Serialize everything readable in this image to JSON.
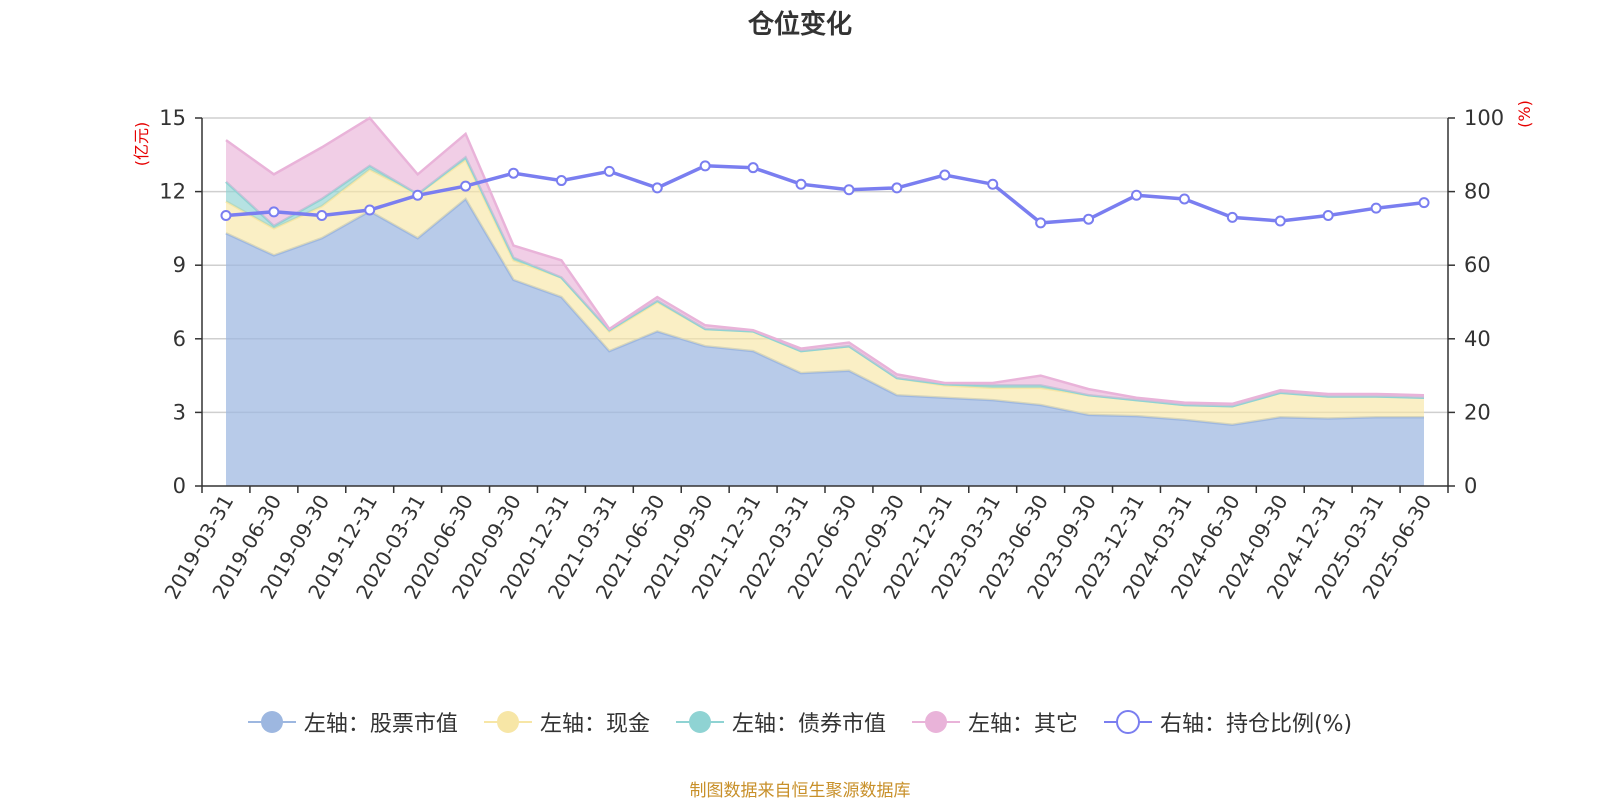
{
  "title": "仓位变化",
  "source_note": "制图数据来自恒生聚源数据库",
  "legend": [
    {
      "label": "左轴：股票市值",
      "color": "#9db7e0",
      "marker": "filled-circle"
    },
    {
      "label": "左轴：现金",
      "color": "#f7e6a6",
      "marker": "filled-circle"
    },
    {
      "label": "左轴：债券市值",
      "color": "#8fd3d3",
      "marker": "filled-circle"
    },
    {
      "label": "左轴：其它",
      "color": "#e9b3d9",
      "marker": "filled-circle"
    },
    {
      "label": "右轴：持仓比例(%)",
      "color": "#7a7ef0",
      "marker": "hollow-circle"
    }
  ],
  "chart_data": {
    "type": "area",
    "title": "仓位变化",
    "y_left_unit": "(亿元)",
    "y_right_unit": "(%)",
    "ylim_left": [
      0,
      15
    ],
    "ylim_right": [
      0,
      100
    ],
    "y_left_ticks": [
      "0",
      "3",
      "6",
      "9",
      "12",
      "15"
    ],
    "y_right_ticks": [
      "0",
      "20",
      "40",
      "60",
      "80",
      "100"
    ],
    "grid": true,
    "legend_position": "bottom",
    "categories": [
      "2019-03-31",
      "2019-06-30",
      "2019-09-30",
      "2019-12-31",
      "2020-03-31",
      "2020-06-30",
      "2020-09-30",
      "2020-12-31",
      "2021-03-31",
      "2021-06-30",
      "2021-09-30",
      "2021-12-31",
      "2022-03-31",
      "2022-06-30",
      "2022-09-30",
      "2022-12-31",
      "2023-03-31",
      "2023-06-30",
      "2023-09-30",
      "2023-12-31",
      "2024-03-31",
      "2024-06-30",
      "2024-09-30",
      "2024-12-31",
      "2025-03-31",
      "2025-06-30"
    ],
    "series": [
      {
        "name": "左轴：股票市值",
        "axis": "left",
        "stacked": true,
        "color": "#9db7e0",
        "values": [
          10.3,
          9.4,
          10.1,
          11.2,
          10.1,
          11.7,
          8.4,
          7.7,
          5.5,
          6.3,
          5.7,
          5.5,
          4.6,
          4.7,
          3.7,
          3.6,
          3.5,
          3.3,
          2.9,
          2.85,
          2.7,
          2.5,
          2.8,
          2.75,
          2.8,
          2.8
        ]
      },
      {
        "name": "左轴：现金",
        "axis": "left",
        "stacked": true,
        "color": "#f7e6a6",
        "values": [
          1.3,
          1.1,
          1.3,
          1.7,
          1.8,
          1.6,
          0.8,
          0.8,
          0.8,
          1.2,
          0.7,
          0.8,
          0.9,
          1.0,
          0.7,
          0.5,
          0.5,
          0.7,
          0.8,
          0.65,
          0.6,
          0.75,
          1.0,
          0.9,
          0.85,
          0.8
        ]
      },
      {
        "name": "左轴：债券市值",
        "axis": "left",
        "stacked": true,
        "color": "#8fd3d3",
        "values": [
          0.8,
          0.1,
          0.3,
          0.15,
          0.0,
          0.1,
          0.1,
          0.0,
          0.05,
          0.05,
          0.0,
          0.0,
          0.0,
          0.0,
          0.0,
          0.05,
          0.1,
          0.1,
          0.0,
          0.0,
          0.0,
          0.0,
          0.0,
          0.0,
          0.0,
          0.0
        ]
      },
      {
        "name": "左轴：其它",
        "axis": "left",
        "stacked": true,
        "color": "#e9b3d9",
        "values": [
          1.7,
          2.1,
          2.1,
          1.95,
          0.8,
          0.95,
          0.5,
          0.7,
          0.05,
          0.15,
          0.15,
          0.05,
          0.1,
          0.15,
          0.15,
          0.05,
          0.1,
          0.4,
          0.25,
          0.1,
          0.1,
          0.1,
          0.1,
          0.1,
          0.1,
          0.1
        ]
      },
      {
        "name": "右轴：持仓比例(%)",
        "axis": "right",
        "type": "line",
        "color": "#7a7ef0",
        "values": [
          73.5,
          74.5,
          73.5,
          75,
          79,
          81.5,
          85,
          83,
          85.5,
          81,
          87,
          86.5,
          82,
          80.5,
          81,
          84.5,
          82,
          71.5,
          72.5,
          79,
          78,
          73,
          72,
          73.5,
          75.5,
          77
        ]
      }
    ]
  }
}
